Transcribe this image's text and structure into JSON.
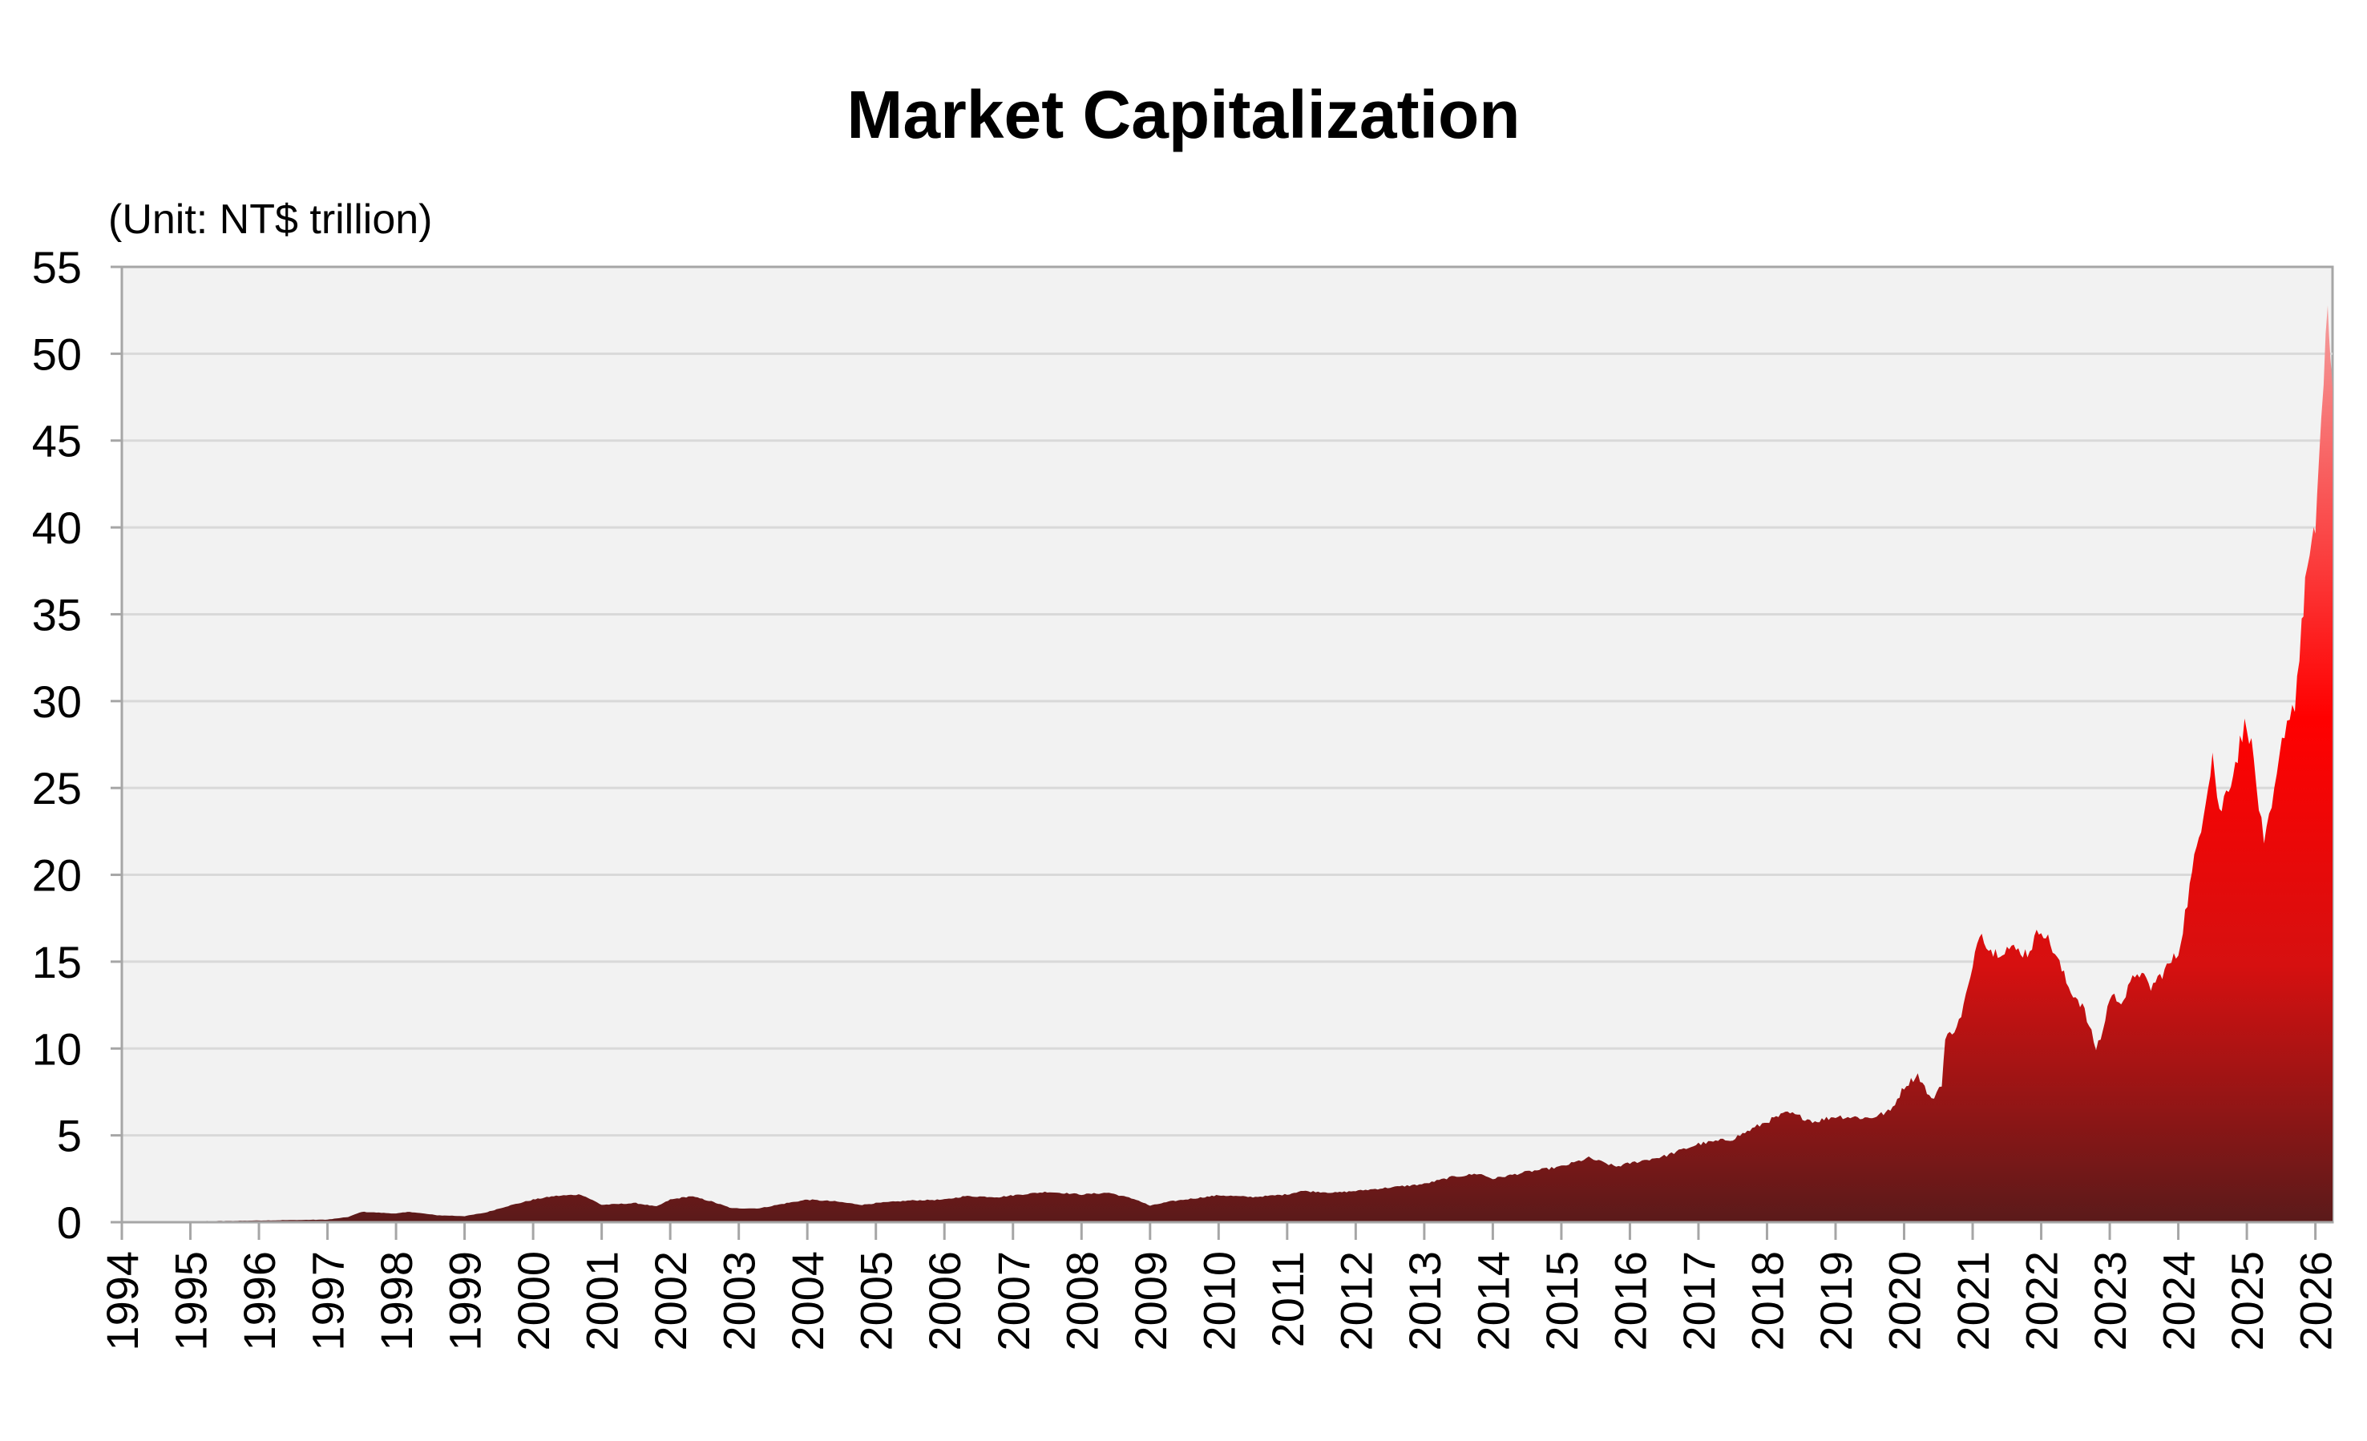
{
  "chart_data": {
    "type": "area",
    "title": "Market Capitalization",
    "unit_label": "(Unit: NT$ trillion)",
    "xlabel": "",
    "ylabel": "",
    "xlim": [
      1994.0,
      2026.25
    ],
    "ylim": [
      0,
      55
    ],
    "y_ticks": [
      0,
      5,
      10,
      15,
      20,
      25,
      30,
      35,
      40,
      45,
      50,
      55
    ],
    "x_ticks": [
      "1994",
      "1995",
      "1996",
      "1997",
      "1998",
      "1999",
      "2000",
      "2001",
      "2002",
      "2003",
      "2004",
      "2005",
      "2006",
      "2007",
      "2008",
      "2009",
      "2010",
      "2011",
      "2012",
      "2013",
      "2014",
      "2015",
      "2016",
      "2017",
      "2018",
      "2019",
      "2020",
      "2021",
      "2022",
      "2023",
      "2024",
      "2025",
      "2026"
    ],
    "grid": true,
    "fill_gradient": {
      "bottom": "#5a1a1a",
      "mid": "#d61010",
      "upper": "#ff0000",
      "top": "#f4a0a0"
    },
    "series": [
      {
        "values": [
          [
            1994.0,
            0.0
          ],
          [
            1995.0,
            0.05
          ],
          [
            1996.0,
            0.1
          ],
          [
            1997.0,
            0.15
          ],
          [
            1997.3,
            0.3
          ],
          [
            1997.5,
            0.6
          ],
          [
            1998.0,
            0.5
          ],
          [
            1998.2,
            0.6
          ],
          [
            1998.6,
            0.4
          ],
          [
            1999.0,
            0.35
          ],
          [
            1999.3,
            0.55
          ],
          [
            1999.6,
            0.9
          ],
          [
            2000.0,
            1.3
          ],
          [
            2000.3,
            1.5
          ],
          [
            2000.7,
            1.6
          ],
          [
            2001.0,
            1.0
          ],
          [
            2001.5,
            1.1
          ],
          [
            2001.8,
            0.9
          ],
          [
            2002.0,
            1.3
          ],
          [
            2002.3,
            1.5
          ],
          [
            2002.6,
            1.2
          ],
          [
            2002.9,
            0.8
          ],
          [
            2003.3,
            0.8
          ],
          [
            2003.7,
            1.1
          ],
          [
            2004.0,
            1.3
          ],
          [
            2004.4,
            1.2
          ],
          [
            2004.8,
            1.0
          ],
          [
            2005.0,
            1.1
          ],
          [
            2005.5,
            1.25
          ],
          [
            2006.0,
            1.3
          ],
          [
            2006.3,
            1.5
          ],
          [
            2006.8,
            1.45
          ],
          [
            2007.0,
            1.55
          ],
          [
            2007.5,
            1.75
          ],
          [
            2008.0,
            1.6
          ],
          [
            2008.4,
            1.7
          ],
          [
            2008.8,
            1.3
          ],
          [
            2009.0,
            0.95
          ],
          [
            2009.3,
            1.2
          ],
          [
            2009.7,
            1.4
          ],
          [
            2010.0,
            1.55
          ],
          [
            2010.5,
            1.45
          ],
          [
            2011.0,
            1.6
          ],
          [
            2011.2,
            1.8
          ],
          [
            2011.7,
            1.7
          ],
          [
            2012.0,
            1.8
          ],
          [
            2012.5,
            2.0
          ],
          [
            2013.0,
            2.2
          ],
          [
            2013.4,
            2.6
          ],
          [
            2013.8,
            2.8
          ],
          [
            2014.0,
            2.5
          ],
          [
            2014.5,
            2.9
          ],
          [
            2015.0,
            3.2
          ],
          [
            2015.4,
            3.7
          ],
          [
            2015.8,
            3.2
          ],
          [
            2016.0,
            3.4
          ],
          [
            2016.5,
            3.8
          ],
          [
            2017.0,
            4.5
          ],
          [
            2017.5,
            4.8
          ],
          [
            2018.0,
            5.8
          ],
          [
            2018.3,
            6.3
          ],
          [
            2018.7,
            5.8
          ],
          [
            2019.0,
            6.1
          ],
          [
            2019.5,
            6.0
          ],
          [
            2019.8,
            6.4
          ],
          [
            2020.0,
            7.8
          ],
          [
            2020.2,
            8.5
          ],
          [
            2020.4,
            7.0
          ],
          [
            2020.55,
            8.0
          ],
          [
            2020.6,
            10.5
          ],
          [
            2020.8,
            11.5
          ],
          [
            2021.0,
            14.5
          ],
          [
            2021.1,
            16.8
          ],
          [
            2021.3,
            15.5
          ],
          [
            2021.5,
            15.8
          ],
          [
            2021.8,
            15.5
          ],
          [
            2022.0,
            17.0
          ],
          [
            2022.2,
            15.5
          ],
          [
            2022.4,
            13.5
          ],
          [
            2022.6,
            12.5
          ],
          [
            2022.8,
            10.0
          ],
          [
            2022.9,
            11.0
          ],
          [
            2023.0,
            13.0
          ],
          [
            2023.2,
            12.8
          ],
          [
            2023.4,
            14.5
          ],
          [
            2023.6,
            13.5
          ],
          [
            2023.8,
            14.5
          ],
          [
            2024.0,
            15.5
          ],
          [
            2024.2,
            20.0
          ],
          [
            2024.4,
            24.5
          ],
          [
            2024.5,
            27.0
          ],
          [
            2024.6,
            23.5
          ],
          [
            2024.8,
            26.0
          ],
          [
            2025.0,
            29.0
          ],
          [
            2025.1,
            26.5
          ],
          [
            2025.25,
            21.5
          ],
          [
            2025.4,
            24.5
          ],
          [
            2025.55,
            28.5
          ],
          [
            2025.7,
            30.0
          ],
          [
            2025.8,
            34.0
          ],
          [
            2025.85,
            37.0
          ],
          [
            2025.95,
            38.5
          ],
          [
            2026.0,
            40.0
          ],
          [
            2026.05,
            44.0
          ],
          [
            2026.12,
            48.0
          ],
          [
            2026.18,
            52.0
          ],
          [
            2026.22,
            50.5
          ],
          [
            2026.25,
            48.0
          ]
        ]
      }
    ]
  }
}
